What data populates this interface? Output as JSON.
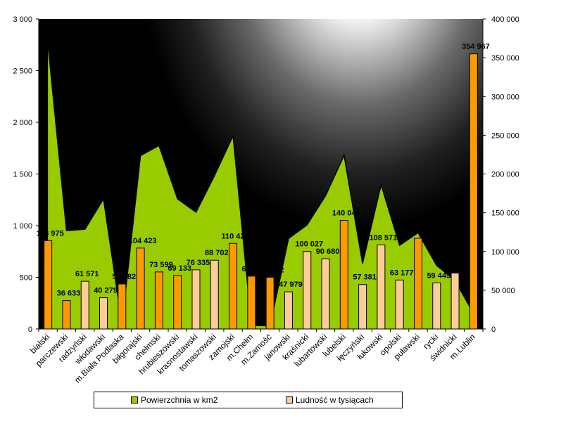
{
  "chart_data": {
    "type": "area",
    "categories": [
      "bialski",
      "parczewski",
      "radzyński",
      "włodawski",
      "m.Biała Podlaska",
      "biłgorajski",
      "chełmski",
      "hrubieszowski",
      "krasnostawski",
      "tomaszowski",
      "zamojski",
      "m.Chełm",
      "m.Zamość",
      "janowski",
      "kraśnicki",
      "lubartowski",
      "lubelski",
      "łęczyński",
      "łukowski",
      "opolski",
      "puławski",
      "rycki",
      "świdnicki",
      "m.Lublin"
    ],
    "series": [
      {
        "name": "Powierzchnia w km2",
        "type": "area",
        "axis": "left",
        "color": "#99CC00",
        "values": [
          2754,
          952,
          965,
          1258,
          49,
          1678,
          1775,
          1259,
          1129,
          1484,
          1869,
          35,
          30,
          875,
          1007,
          1290,
          1680,
          633,
          1395,
          810,
          932,
          615,
          469,
          147
        ]
      },
      {
        "name": "Ludność w tysiącach",
        "type": "bar",
        "axis": "right",
        "values": [
          113975,
          36633,
          61571,
          40279,
          58082,
          104423,
          73599,
          69133,
          76335,
          88702,
          110423,
          68166,
          66802,
          47979,
          100027,
          90680,
          140048,
          57381,
          108571,
          63177,
          117019,
          59445,
          72206,
          354967
        ],
        "labels": [
          "113 975",
          "36 633",
          "61 571",
          "40 279",
          "58 082",
          "104 423",
          "73 599",
          "69 133",
          "76 335",
          "88 702",
          "110 423",
          "68 166",
          "66 802",
          "47 979",
          "100 027",
          "90 680",
          "140 048",
          "57 381",
          "108 571",
          "63 177",
          "117 019",
          "59 445",
          "72 206",
          "354 967"
        ],
        "bar_colors": [
          "#FF9900",
          "#FF9900",
          "#FFCC99",
          "#FFCC99",
          "#FF9900",
          "#FF9900",
          "#FF9900",
          "#FF9900",
          "#FFCC99",
          "#FFCC99",
          "#FF9900",
          "#FF9900",
          "#FF9900",
          "#FFCC99",
          "#FFCC99",
          "#FFCC99",
          "#FF9900",
          "#FFCC99",
          "#FFCC99",
          "#FFCC99",
          "#FF9900",
          "#FFCC99",
          "#FFCC99",
          "#FF9900"
        ]
      }
    ],
    "y_left": {
      "ylim": [
        0,
        3000
      ],
      "ticks": [
        0,
        500,
        1000,
        1500,
        2000,
        2500,
        3000
      ],
      "tick_labels": [
        "0",
        "500",
        "1 000",
        "1 500",
        "2 000",
        "2 500",
        "3 000"
      ]
    },
    "y_right": {
      "ylim": [
        0,
        400000
      ],
      "ticks": [
        0,
        50000,
        100000,
        150000,
        200000,
        250000,
        300000,
        350000,
        400000
      ],
      "tick_labels": [
        "0",
        "50 000",
        "100 000",
        "150 000",
        "200 000",
        "250 000",
        "300 000",
        "350 000",
        "400 000"
      ]
    },
    "grid": false,
    "legend": {
      "position": "bottom",
      "items": [
        {
          "label": "Powierzchnia w km2",
          "color": "#99CC00"
        },
        {
          "label": "Ludność w tysiącach",
          "color": "#FFCC99"
        }
      ]
    }
  }
}
